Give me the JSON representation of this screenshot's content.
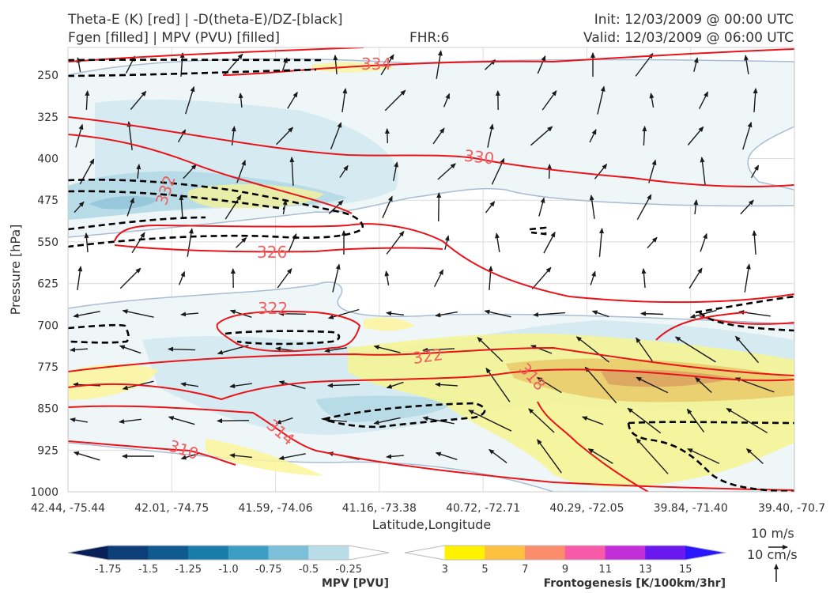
{
  "header": {
    "title_line1": "Theta-E (K) [red] | -D(theta-E)/DZ-[black]",
    "title_line2": "Fgen [filled] | MPV (PVU) [filled]",
    "fhr": "FHR:6",
    "init": "Init: 12/03/2009 @ 00:00 UTC",
    "valid": "Valid: 12/03/2009 @ 06:00 UTC"
  },
  "chart_data": {
    "type": "cross-section",
    "xlabel": "Latitude,Longitude",
    "ylabel": "Pressure [hPa]",
    "x_ticks": [
      "42.44, -75.44",
      "42.01, -74.75",
      "41.59, -74.06",
      "41.16, -73.38",
      "40.72, -72.71",
      "40.29, -72.05",
      "39.84, -71.40",
      "39.40, -70.7"
    ],
    "y_ticks": [
      250,
      325,
      400,
      475,
      550,
      625,
      700,
      775,
      850,
      925,
      1000
    ],
    "ylim": [
      1000,
      200
    ],
    "grid": true,
    "theta_e_contours": [
      {
        "value": 334,
        "label": "334"
      },
      {
        "value": 330,
        "label": "330"
      },
      {
        "value": 326,
        "label": "326"
      },
      {
        "value": 322,
        "label": "322"
      },
      {
        "value": 322,
        "label": "322"
      },
      {
        "value": 322,
        "label": "322"
      },
      {
        "value": 318,
        "label": "318"
      },
      {
        "value": 314,
        "label": "314"
      },
      {
        "value": 310,
        "label": "310"
      }
    ],
    "mpv_colorbar": {
      "title": "MPV [PVU]",
      "ticks": [
        "-1.75",
        "-1.5",
        "-1.25",
        "-1.0",
        "-0.75",
        "-0.5",
        "-0.25"
      ],
      "colors": [
        "#08205a",
        "#0c3e78",
        "#0f5a8e",
        "#1a7ca8",
        "#3d9ec4",
        "#7bbfd8",
        "#b8dce8",
        "#ffffff"
      ]
    },
    "fgen_colorbar": {
      "title": "Frontogenesis [K/100km/3hr]",
      "ticks": [
        "3",
        "5",
        "7",
        "9",
        "11",
        "13",
        "15"
      ],
      "colors": [
        "#ffffff",
        "#fff200",
        "#fdc040",
        "#fb8c6c",
        "#f75aa8",
        "#c22ed8",
        "#6a18f0",
        "#2a16ff"
      ]
    },
    "reference_vectors": {
      "horizontal": "10 m/s",
      "vertical": "10 cm/s"
    }
  }
}
